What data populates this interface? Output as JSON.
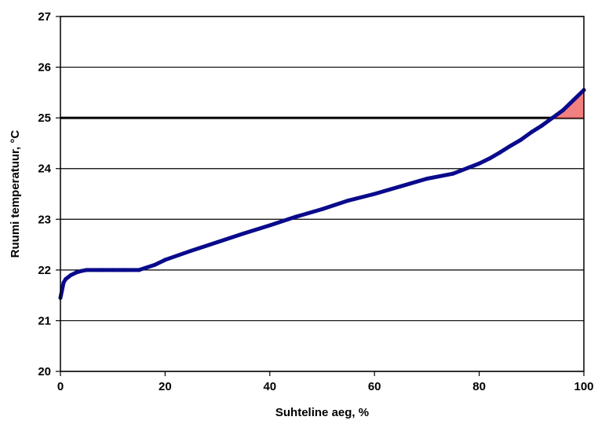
{
  "chart_data": {
    "type": "line",
    "title": "",
    "xlabel": "Suhteline aeg, %",
    "ylabel": "Ruumi temperatuur, °C",
    "xlim": [
      0,
      100
    ],
    "ylim": [
      20,
      27
    ],
    "x_ticks": [
      "0",
      "20",
      "40",
      "60",
      "80",
      "100"
    ],
    "y_ticks": [
      "20",
      "21",
      "22",
      "23",
      "24",
      "25",
      "26",
      "27"
    ],
    "grid": "horizontal",
    "legend": "none",
    "threshold": 25,
    "colors": {
      "line": "#0a0a8c",
      "exceed_fill": "#f28080",
      "grid": "#000000"
    },
    "series": [
      {
        "x": [
          0,
          0.3,
          0.6,
          1,
          2,
          3,
          4,
          5,
          8,
          10,
          12,
          15,
          18,
          20,
          25,
          30,
          35,
          40,
          45,
          50,
          55,
          60,
          65,
          70,
          75,
          78,
          80,
          82,
          84,
          86,
          88,
          90,
          92,
          94,
          96,
          98,
          100
        ],
        "y": [
          21.45,
          21.6,
          21.75,
          21.82,
          21.9,
          21.95,
          21.98,
          22.0,
          22.0,
          22.0,
          22.0,
          22.0,
          22.1,
          22.2,
          22.38,
          22.55,
          22.72,
          22.88,
          23.05,
          23.2,
          23.37,
          23.5,
          23.65,
          23.8,
          23.9,
          24.02,
          24.1,
          24.2,
          24.32,
          24.45,
          24.57,
          24.72,
          24.85,
          25.0,
          25.15,
          25.35,
          25.55
        ]
      }
    ]
  }
}
